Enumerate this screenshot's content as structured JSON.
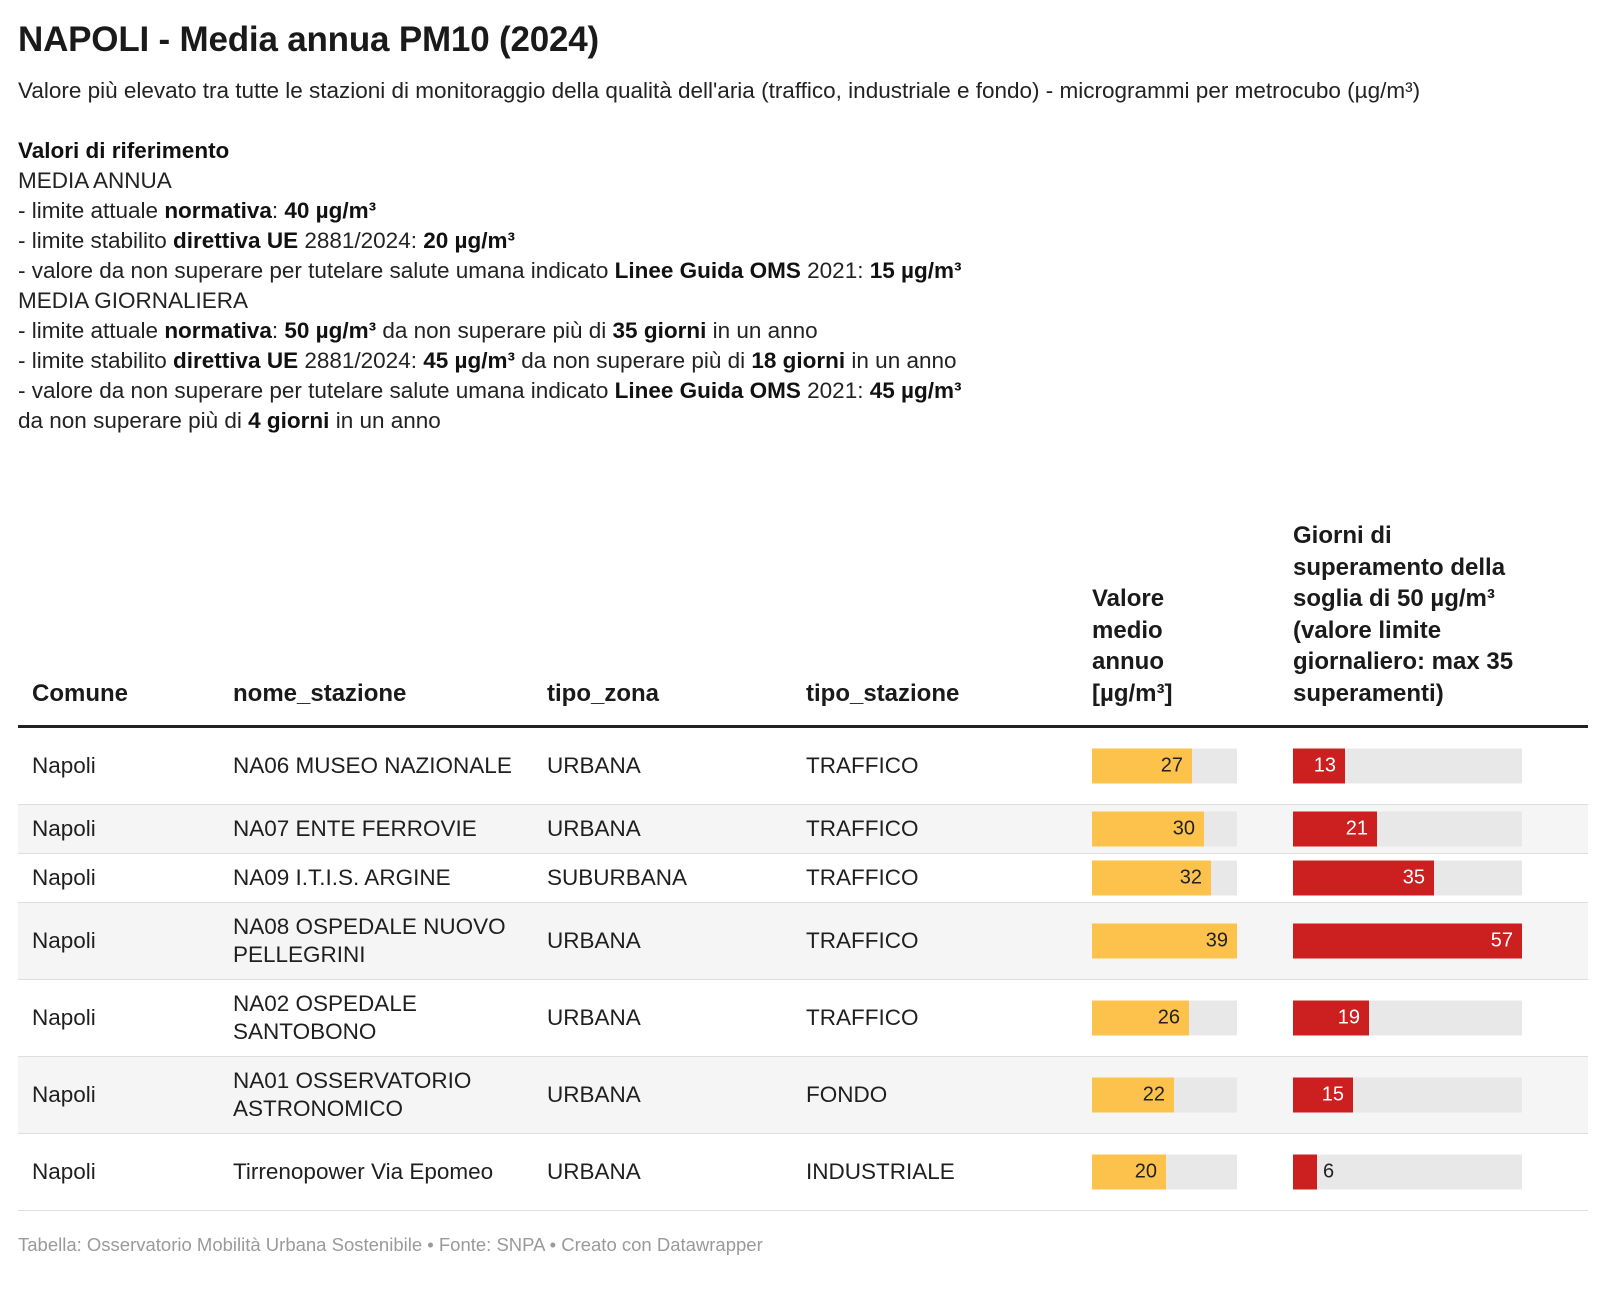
{
  "title": "NAPOLI - Media annua PM10 (2024)",
  "subtitle": "Valore più elevato tra tutte le stazioni di monitoraggio della qualità dell'aria (traffico, industriale e fondo) - microgrammi per metrocubo (µg/m³)",
  "references": {
    "heading": "Valori di riferimento",
    "annual_heading": "MEDIA ANNUA",
    "annual_1": [
      "- limite attuale ",
      "normativa",
      ": ",
      "40 µg/m³"
    ],
    "annual_2": [
      "- limite stabilito ",
      "direttiva UE",
      " 2881/2024: ",
      "20 µg/m³"
    ],
    "annual_3": [
      "- valore da non superare per tutelare salute umana indicato ",
      "Linee Guida OMS",
      " 2021: ",
      "15 µg/m³"
    ],
    "daily_heading": "MEDIA GIORNALIERA",
    "daily_1": [
      "- limite attuale ",
      "normativa",
      ": ",
      "50 µg/m³",
      " da non superare più di ",
      "35 giorni",
      " in un anno"
    ],
    "daily_2": [
      "- limite stabilito ",
      "direttiva UE",
      " 2881/2024: ",
      "45 µg/m³",
      " da non superare più di ",
      "18 giorni",
      " in un anno"
    ],
    "daily_3": [
      "- valore da non superare per tutelare salute umana indicato ",
      "Linee Guida OMS",
      " 2021: ",
      "45 µg/m³"
    ],
    "daily_3b": [
      "da non superare più di ",
      "4 giorni",
      " in un anno"
    ]
  },
  "columns": {
    "comune": "Comune",
    "nome_stazione": "nome_stazione",
    "tipo_zona": "tipo_zona",
    "tipo_stazione": "tipo_stazione",
    "valore": "Valore medio annuo [µg/m³]",
    "giorni": "Giorni di superamento della soglia di 50 µg/m³ (valore limite giornaliero: max 35 superamenti)"
  },
  "colors": {
    "valore_bar": "#fdc24c",
    "giorni_bar": "#cc1f1f",
    "bar_track": "#e8e8e8"
  },
  "chart_data": {
    "type": "table",
    "valore_max": 39,
    "giorni_max": 57,
    "rows": [
      {
        "comune": "Napoli",
        "nome_stazione": "NA06 MUSEO NAZIONALE",
        "tipo_zona": "URBANA",
        "tipo_stazione": "TRAFFICO",
        "valore": 27,
        "giorni": 13
      },
      {
        "comune": "Napoli",
        "nome_stazione": "NA07 ENTE FERROVIE",
        "tipo_zona": "URBANA",
        "tipo_stazione": "TRAFFICO",
        "valore": 30,
        "giorni": 21
      },
      {
        "comune": "Napoli",
        "nome_stazione": "NA09 I.T.I.S. ARGINE",
        "tipo_zona": "SUBURBANA",
        "tipo_stazione": "TRAFFICO",
        "valore": 32,
        "giorni": 35
      },
      {
        "comune": "Napoli",
        "nome_stazione": "NA08 OSPEDALE NUOVO PELLEGRINI",
        "tipo_zona": "URBANA",
        "tipo_stazione": "TRAFFICO",
        "valore": 39,
        "giorni": 57
      },
      {
        "comune": "Napoli",
        "nome_stazione": "NA02 OSPEDALE SANTOBONO",
        "tipo_zona": "URBANA",
        "tipo_stazione": "TRAFFICO",
        "valore": 26,
        "giorni": 19
      },
      {
        "comune": "Napoli",
        "nome_stazione": "NA01 OSSERVATORIO ASTRONOMICO",
        "tipo_zona": "URBANA",
        "tipo_stazione": "FONDO",
        "valore": 22,
        "giorni": 15
      },
      {
        "comune": "Napoli",
        "nome_stazione": "Tirrenopower Via Epomeo",
        "tipo_zona": "URBANA",
        "tipo_stazione": "INDUSTRIALE",
        "valore": 20,
        "giorni": 6
      }
    ]
  },
  "footer": "Tabella: Osservatorio Mobilità Urbana Sostenibile • Fonte: SNPA • Creato con Datawrapper"
}
